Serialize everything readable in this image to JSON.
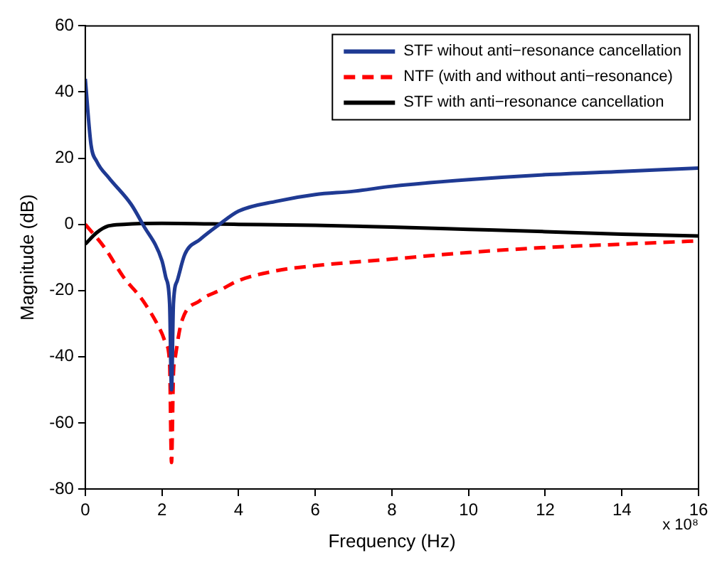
{
  "chart_data": {
    "type": "line",
    "xlabel": "Frequency (Hz)",
    "ylabel": "Magnitude (dB)",
    "annotations": [
      "x 10⁸"
    ],
    "xlim": [
      0,
      16
    ],
    "ylim": [
      -80,
      60
    ],
    "xticks": [
      0,
      2,
      4,
      6,
      8,
      10,
      12,
      14,
      16
    ],
    "yticks": [
      -80,
      -60,
      -40,
      -20,
      0,
      20,
      40,
      60
    ],
    "grid": false,
    "legend": "top right",
    "marker": "none",
    "series": [
      {
        "name": "STF wihout anti−resonance cancellation",
        "color": "#1f3a93",
        "line_style": "solid",
        "x": [
          0,
          0.15,
          0.3,
          0.62,
          1.2,
          1.5,
          2,
          2.1,
          2.2,
          2.25,
          2.3,
          2.4,
          2.6,
          3,
          3.5,
          4,
          5,
          6,
          7,
          8,
          10,
          12,
          14,
          16
        ],
        "values": [
          44,
          24,
          19,
          14,
          6,
          0,
          -11,
          -16,
          -24,
          -50,
          -24,
          -17,
          -9,
          -4.5,
          0,
          4,
          7,
          9,
          10,
          11.5,
          13.5,
          15,
          16,
          17
        ]
      },
      {
        "name": "NTF (with and without anti−resonance)",
        "color": "#ff0000",
        "line_style": "dashed",
        "x": [
          0,
          0.5,
          1,
          1.5,
          2,
          2.1,
          2.2,
          2.25,
          2.3,
          2.35,
          2.5,
          3,
          3.5,
          4,
          5,
          6,
          8,
          10,
          12,
          14,
          16
        ],
        "values": [
          0,
          -7,
          -16,
          -23,
          -33,
          -36,
          -42,
          -72,
          -45,
          -40,
          -30,
          -23,
          -20,
          -17,
          -14,
          -12.5,
          -10.5,
          -8.5,
          -7,
          -6,
          -5
        ]
      },
      {
        "name": "STF with anti−resonance cancellation",
        "color": "#000000",
        "line_style": "solid",
        "x": [
          0,
          0.3,
          0.6,
          1,
          2,
          4,
          6,
          8,
          10,
          12,
          14,
          16
        ],
        "values": [
          -6,
          -2.5,
          -0.5,
          0,
          0.3,
          0,
          -0.3,
          -0.8,
          -1.5,
          -2.2,
          -3,
          -3.5
        ]
      }
    ]
  }
}
